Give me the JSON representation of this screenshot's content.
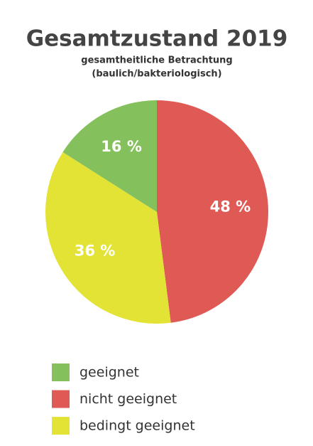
{
  "chart_data": {
    "type": "pie",
    "title": "Gesamtzustand 2019",
    "subtitle": [
      "gesamtheitliche Betrachtung",
      "(baulich/bakteriologisch)"
    ],
    "categories": [
      "geeignet",
      "nicht geeignet",
      "bedingt geeignet"
    ],
    "values": [
      16,
      48,
      36
    ],
    "value_labels": [
      "16 %",
      "48 %",
      "36 %"
    ],
    "colors": [
      "#84c05c",
      "#e05a55",
      "#e3e336"
    ]
  }
}
